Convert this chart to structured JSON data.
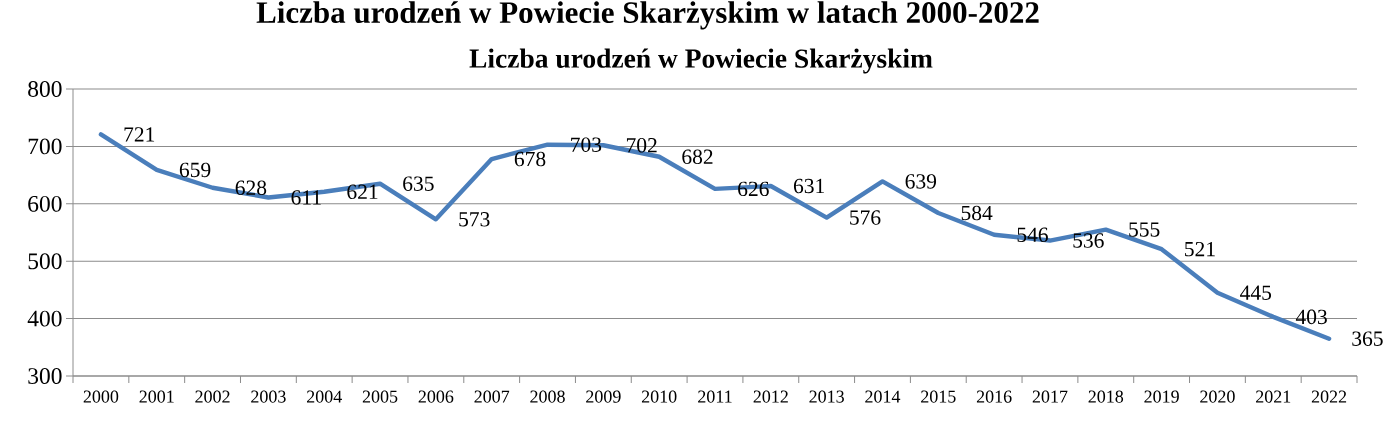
{
  "chart_data": {
    "type": "line",
    "title": "Liczba urodzeń w Powiecie Skarżyskim w latach 2000-2022",
    "subtitle": "Liczba urodzeń w Powiecie Skarżyskim",
    "categories": [
      "2000",
      "2001",
      "2002",
      "2003",
      "2004",
      "2005",
      "2006",
      "2007",
      "2008",
      "2009",
      "2010",
      "2011",
      "2012",
      "2013",
      "2014",
      "2015",
      "2016",
      "2017",
      "2018",
      "2019",
      "2020",
      "2021",
      "2022"
    ],
    "series": [
      {
        "color": "#4a7ebb",
        "values": [
          721,
          659,
          628,
          611,
          621,
          635,
          573,
          678,
          703,
          702,
          682,
          626,
          631,
          576,
          639,
          584,
          546,
          536,
          555,
          521,
          445,
          403,
          365
        ]
      }
    ],
    "ylim": [
      300,
      800
    ],
    "yticks": [
      300,
      400,
      500,
      600,
      700,
      800
    ],
    "grid": "y",
    "data_labels": true
  }
}
